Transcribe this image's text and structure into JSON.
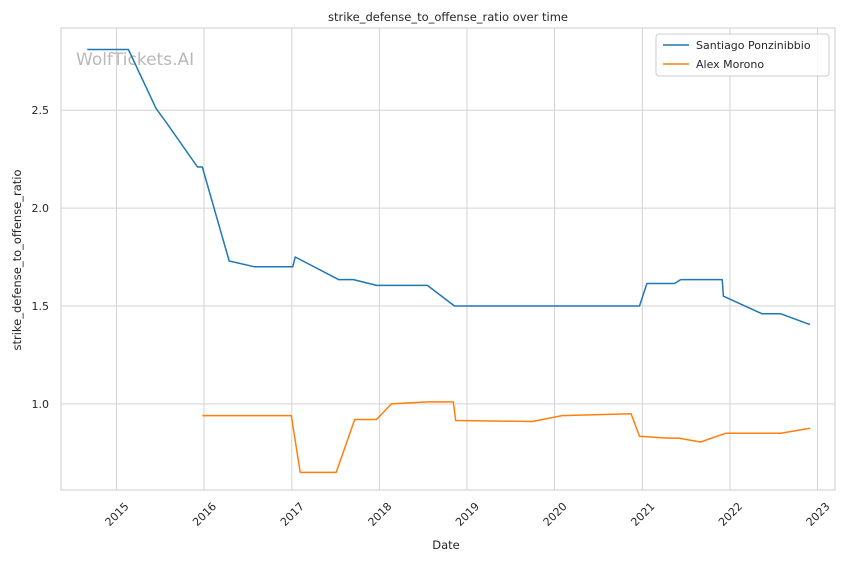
{
  "chart_data": {
    "type": "line",
    "title": "strike_defense_to_offense_ratio over time",
    "xlabel": "Date",
    "ylabel": "strike_defense_to_offense_ratio",
    "watermark": "WolfTickets.AI",
    "x_ticks": [
      "2015",
      "2016",
      "2017",
      "2018",
      "2019",
      "2020",
      "2021",
      "2022",
      "2023"
    ],
    "y_ticks": [
      "1.0",
      "1.5",
      "2.0",
      "2.5"
    ],
    "xlim": [
      "2014-05-15",
      "2023-03-15"
    ],
    "ylim": [
      0.56,
      2.92
    ],
    "grid": true,
    "legend_position": "top-right",
    "series": [
      {
        "name": "Santiago Ponzinibbio",
        "color": "#1f77b4",
        "points": [
          [
            "2014-09-01",
            2.81
          ],
          [
            "2015-02-20",
            2.81
          ],
          [
            "2015-06-15",
            2.51
          ],
          [
            "2015-08-01",
            2.43
          ],
          [
            "2015-12-05",
            2.21
          ],
          [
            "2015-12-25",
            2.21
          ],
          [
            "2016-04-15",
            1.73
          ],
          [
            "2016-07-30",
            1.7
          ],
          [
            "2017-01-05",
            1.7
          ],
          [
            "2017-01-15",
            1.75
          ],
          [
            "2017-07-15",
            1.635
          ],
          [
            "2017-09-15",
            1.635
          ],
          [
            "2017-12-20",
            1.605
          ],
          [
            "2018-07-20",
            1.605
          ],
          [
            "2018-11-10",
            1.5
          ],
          [
            "2020-12-20",
            1.5
          ],
          [
            "2021-01-20",
            1.615
          ],
          [
            "2021-05-15",
            1.615
          ],
          [
            "2021-06-10",
            1.635
          ],
          [
            "2021-11-30",
            1.635
          ],
          [
            "2021-12-05",
            1.55
          ],
          [
            "2022-05-15",
            1.46
          ],
          [
            "2022-08-01",
            1.46
          ],
          [
            "2022-12-01",
            1.405
          ]
        ]
      },
      {
        "name": "Alex Morono",
        "color": "#ff7f0e",
        "points": [
          [
            "2015-12-25",
            0.94
          ],
          [
            "2016-12-30",
            0.94
          ],
          [
            "2017-02-05",
            0.65
          ],
          [
            "2017-07-05",
            0.65
          ],
          [
            "2017-09-20",
            0.92
          ],
          [
            "2017-12-20",
            0.92
          ],
          [
            "2018-02-20",
            1.0
          ],
          [
            "2018-07-20",
            1.01
          ],
          [
            "2018-11-05",
            1.01
          ],
          [
            "2018-11-15",
            0.915
          ],
          [
            "2019-10-01",
            0.91
          ],
          [
            "2020-02-01",
            0.94
          ],
          [
            "2020-11-15",
            0.95
          ],
          [
            "2020-12-20",
            0.835
          ],
          [
            "2021-04-15",
            0.825
          ],
          [
            "2021-06-01",
            0.825
          ],
          [
            "2021-09-01",
            0.805
          ],
          [
            "2021-12-15",
            0.85
          ],
          [
            "2022-08-01",
            0.85
          ],
          [
            "2022-12-01",
            0.875
          ]
        ]
      }
    ]
  }
}
